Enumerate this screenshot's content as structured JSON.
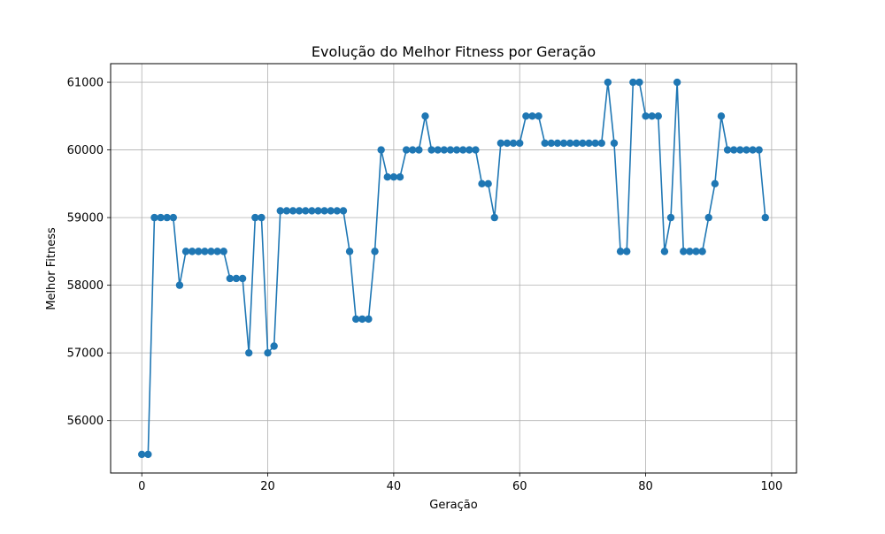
{
  "chart_data": {
    "type": "line",
    "title": "Evolução do Melhor Fitness por Geração",
    "xlabel": "Geração",
    "ylabel": "Melhor Fitness",
    "xlim": [
      -4.95,
      103.95
    ],
    "ylim": [
      55225,
      61275
    ],
    "xticks": [
      0,
      20,
      40,
      60,
      80,
      100
    ],
    "yticks": [
      56000,
      57000,
      58000,
      59000,
      60000,
      61000
    ],
    "grid": true,
    "marker": "circle",
    "color": "#1f77b4",
    "series": [
      {
        "x": [
          0,
          1,
          2,
          3,
          4,
          5,
          6,
          7,
          8,
          9,
          10,
          11,
          12,
          13,
          14,
          15,
          16,
          17,
          18,
          19,
          20,
          21,
          22,
          23,
          24,
          25,
          26,
          27,
          28,
          29,
          30,
          31,
          32,
          33,
          34,
          35,
          36,
          37,
          38,
          39,
          40,
          41,
          42,
          43,
          44,
          45,
          46,
          47,
          48,
          49,
          50,
          51,
          52,
          53,
          54,
          55,
          56,
          57,
          58,
          59,
          60,
          61,
          62,
          63,
          64,
          65,
          66,
          67,
          68,
          69,
          70,
          71,
          72,
          73,
          74,
          75,
          76,
          77,
          78,
          79,
          80,
          81,
          82,
          83,
          84,
          85,
          86,
          87,
          88,
          89,
          90,
          91,
          92,
          93,
          94,
          95,
          96,
          97,
          98,
          99
        ],
        "values": [
          55500,
          55500,
          59000,
          59000,
          59000,
          59000,
          58000,
          58500,
          58500,
          58500,
          58500,
          58500,
          58500,
          58500,
          58100,
          58100,
          58100,
          57000,
          59000,
          59000,
          57000,
          57100,
          59100,
          59100,
          59100,
          59100,
          59100,
          59100,
          59100,
          59100,
          59100,
          59100,
          59100,
          58500,
          57500,
          57500,
          57500,
          58500,
          60000,
          59600,
          59600,
          59600,
          60000,
          60000,
          60000,
          60500,
          60000,
          60000,
          60000,
          60000,
          60000,
          60000,
          60000,
          60000,
          59500,
          59500,
          59000,
          60100,
          60100,
          60100,
          60100,
          60500,
          60500,
          60500,
          60100,
          60100,
          60100,
          60100,
          60100,
          60100,
          60100,
          60100,
          60100,
          60100,
          61000,
          60100,
          58500,
          58500,
          61000,
          61000,
          60500,
          60500,
          60500,
          58500,
          59000,
          61000,
          58500,
          58500,
          58500,
          58500,
          59000,
          59500,
          60500,
          60000,
          60000,
          60000,
          60000,
          60000,
          60000,
          59000
        ]
      }
    ]
  }
}
